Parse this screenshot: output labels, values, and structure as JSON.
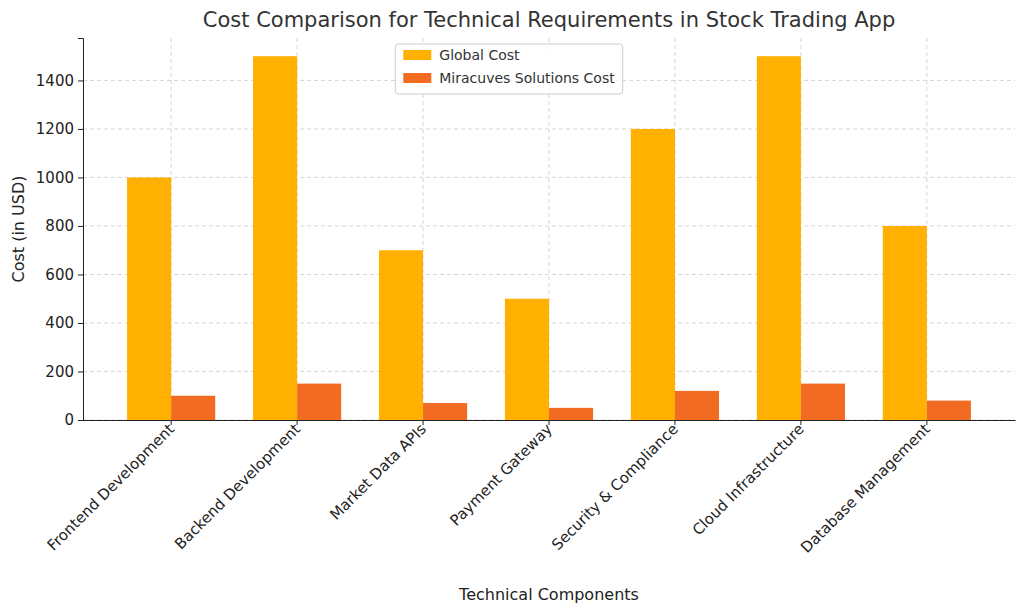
{
  "chart_data": {
    "type": "bar",
    "title": "Cost Comparison for Technical Requirements in Stock Trading App",
    "x_label": "Technical Components",
    "y_label": "Cost (in USD)",
    "categories": [
      "Frontend Development",
      "Backend Development",
      "Market Data APIs",
      "Payment Gateway",
      "Security & Compliance",
      "Cloud Infrastructure",
      "Database Management"
    ],
    "series": [
      {
        "name": "Global Cost",
        "color": "#ffb000",
        "values": [
          1000,
          1500,
          700,
          500,
          1200,
          1500,
          800
        ]
      },
      {
        "name": "Miracuves Solutions Cost",
        "color": "#f26b23",
        "values": [
          100,
          150,
          70,
          50,
          120,
          150,
          80
        ]
      }
    ],
    "ylim": [
      0,
      1575
    ],
    "yticks": [
      0,
      200,
      400,
      600,
      800,
      1000,
      1200,
      1400
    ],
    "grid": true,
    "legend": "top"
  }
}
